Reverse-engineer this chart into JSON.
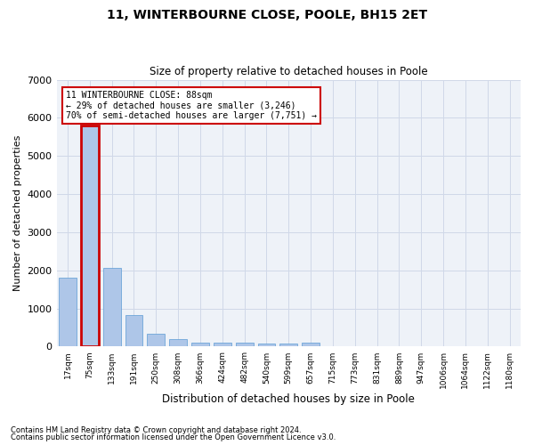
{
  "title": "11, WINTERBOURNE CLOSE, POOLE, BH15 2ET",
  "subtitle": "Size of property relative to detached houses in Poole",
  "xlabel": "Distribution of detached houses by size in Poole",
  "ylabel": "Number of detached properties",
  "annotation_line1": "11 WINTERBOURNE CLOSE: 88sqm",
  "annotation_line2": "← 29% of detached houses are smaller (3,246)",
  "annotation_line3": "70% of semi-detached houses are larger (7,751) →",
  "footer_line1": "Contains HM Land Registry data © Crown copyright and database right 2024.",
  "footer_line2": "Contains public sector information licensed under the Open Government Licence v3.0.",
  "categories": [
    "17sqm",
    "75sqm",
    "133sqm",
    "191sqm",
    "250sqm",
    "308sqm",
    "366sqm",
    "424sqm",
    "482sqm",
    "540sqm",
    "599sqm",
    "657sqm",
    "715sqm",
    "773sqm",
    "831sqm",
    "889sqm",
    "947sqm",
    "1006sqm",
    "1064sqm",
    "1122sqm",
    "1180sqm"
  ],
  "values": [
    1800,
    5800,
    2060,
    820,
    340,
    190,
    115,
    108,
    95,
    85,
    70,
    105,
    0,
    0,
    0,
    0,
    0,
    0,
    0,
    0,
    0
  ],
  "highlight_index": 1,
  "bar_color": "#aec6e8",
  "bar_edge_color": "#5b9bd5",
  "highlight_bar_edge_color": "#cc0000",
  "annotation_box_color": "#ffffff",
  "annotation_box_edge_color": "#cc0000",
  "grid_color": "#d0d8e8",
  "bg_color": "#eef2f8",
  "ylim": [
    0,
    7000
  ],
  "yticks": [
    0,
    1000,
    2000,
    3000,
    4000,
    5000,
    6000,
    7000
  ]
}
